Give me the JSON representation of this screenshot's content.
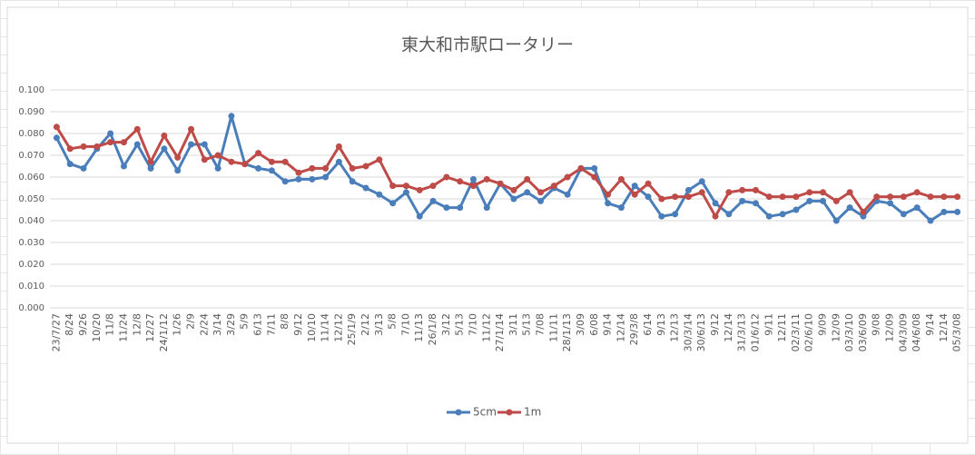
{
  "chart_data": {
    "type": "line",
    "title": "東大和市駅ロータリー",
    "categories": [
      "23/7/27",
      "8/24",
      "9/26",
      "10/20",
      "11/8",
      "11/24",
      "12/8",
      "12/27",
      "24/1/12",
      "1/26",
      "2/9",
      "2/24",
      "3/14",
      "3/29",
      "5/9",
      "6/13",
      "7/11",
      "8/8",
      "9/12",
      "10/10",
      "11/14",
      "12/12",
      "25/1/9",
      "2/12",
      "3/13",
      "5/8",
      "7/10",
      "11/13",
      "26/1/8",
      "3/12",
      "5/13",
      "7/10",
      "11/12",
      "27/1/14",
      "3/11",
      "5/13",
      "7/08",
      "11/11",
      "28/1/13",
      "3/09",
      "6/08",
      "9/14",
      "12/14",
      "29/3/8",
      "6/14",
      "9/13",
      "12/13",
      "30/3/14",
      "30/6/13",
      "9/12",
      "12/14",
      "31/3/13",
      "01/6/12",
      "9/11",
      "12/11",
      "02/3/11",
      "02/6/10",
      "9/09",
      "12/09",
      "03/3/10",
      "03/6/09",
      "9/08",
      "12/09",
      "04/3/09",
      "04/6/08",
      "9/14",
      "12/14",
      "05/3/08"
    ],
    "series": [
      {
        "name": "5cm",
        "color": "#4a7ebb",
        "values": [
          0.078,
          0.066,
          0.064,
          0.073,
          0.08,
          0.065,
          0.075,
          0.064,
          0.073,
          0.063,
          0.075,
          0.075,
          0.064,
          0.088,
          0.066,
          0.064,
          0.063,
          0.058,
          0.059,
          0.059,
          0.06,
          0.067,
          0.058,
          0.055,
          0.052,
          0.048,
          0.053,
          0.042,
          0.049,
          0.046,
          0.046,
          0.059,
          0.046,
          0.057,
          0.05,
          0.053,
          0.049,
          0.055,
          0.052,
          0.064,
          0.064,
          0.048,
          0.046,
          0.056,
          0.051,
          0.042,
          0.043,
          0.054,
          0.058,
          0.048,
          0.043,
          0.049,
          0.048,
          0.042,
          0.043,
          0.045,
          0.049,
          0.049,
          0.04,
          0.046,
          0.042,
          0.049,
          0.048,
          0.043,
          0.046,
          0.04,
          0.044,
          0.044
        ]
      },
      {
        "name": "1m",
        "color": "#be4b48",
        "values": [
          0.083,
          0.073,
          0.074,
          0.074,
          0.076,
          0.076,
          0.082,
          0.067,
          0.079,
          0.069,
          0.082,
          0.068,
          0.07,
          0.067,
          0.066,
          0.071,
          0.067,
          0.067,
          0.062,
          0.064,
          0.064,
          0.074,
          0.064,
          0.065,
          0.068,
          0.056,
          0.056,
          0.054,
          0.056,
          0.06,
          0.058,
          0.056,
          0.059,
          0.057,
          0.054,
          0.059,
          0.053,
          0.056,
          0.06,
          0.064,
          0.06,
          0.052,
          0.059,
          0.052,
          0.057,
          0.05,
          0.051,
          0.051,
          0.053,
          0.042,
          0.053,
          0.054,
          0.054,
          0.051,
          0.051,
          0.051,
          0.053,
          0.053,
          0.049,
          0.053,
          0.044,
          0.051,
          0.051,
          0.051,
          0.053,
          0.051,
          0.051,
          0.051
        ]
      }
    ],
    "ylim": [
      0,
      0.1
    ],
    "yticks": [
      {
        "value": 0,
        "label": "0.000"
      },
      {
        "value": 0.01,
        "label": "0.010"
      },
      {
        "value": 0.02,
        "label": "0.020"
      },
      {
        "value": 0.03,
        "label": "0.030"
      },
      {
        "value": 0.04,
        "label": "0.040"
      },
      {
        "value": 0.05,
        "label": "0.050"
      },
      {
        "value": 0.06,
        "label": "0.060"
      },
      {
        "value": 0.07,
        "label": "0.070"
      },
      {
        "value": 0.08,
        "label": "0.080"
      },
      {
        "value": 0.09,
        "label": "0.090"
      },
      {
        "value": 0.1,
        "label": "0.100"
      }
    ],
    "grid": true,
    "legend": "bottom"
  }
}
